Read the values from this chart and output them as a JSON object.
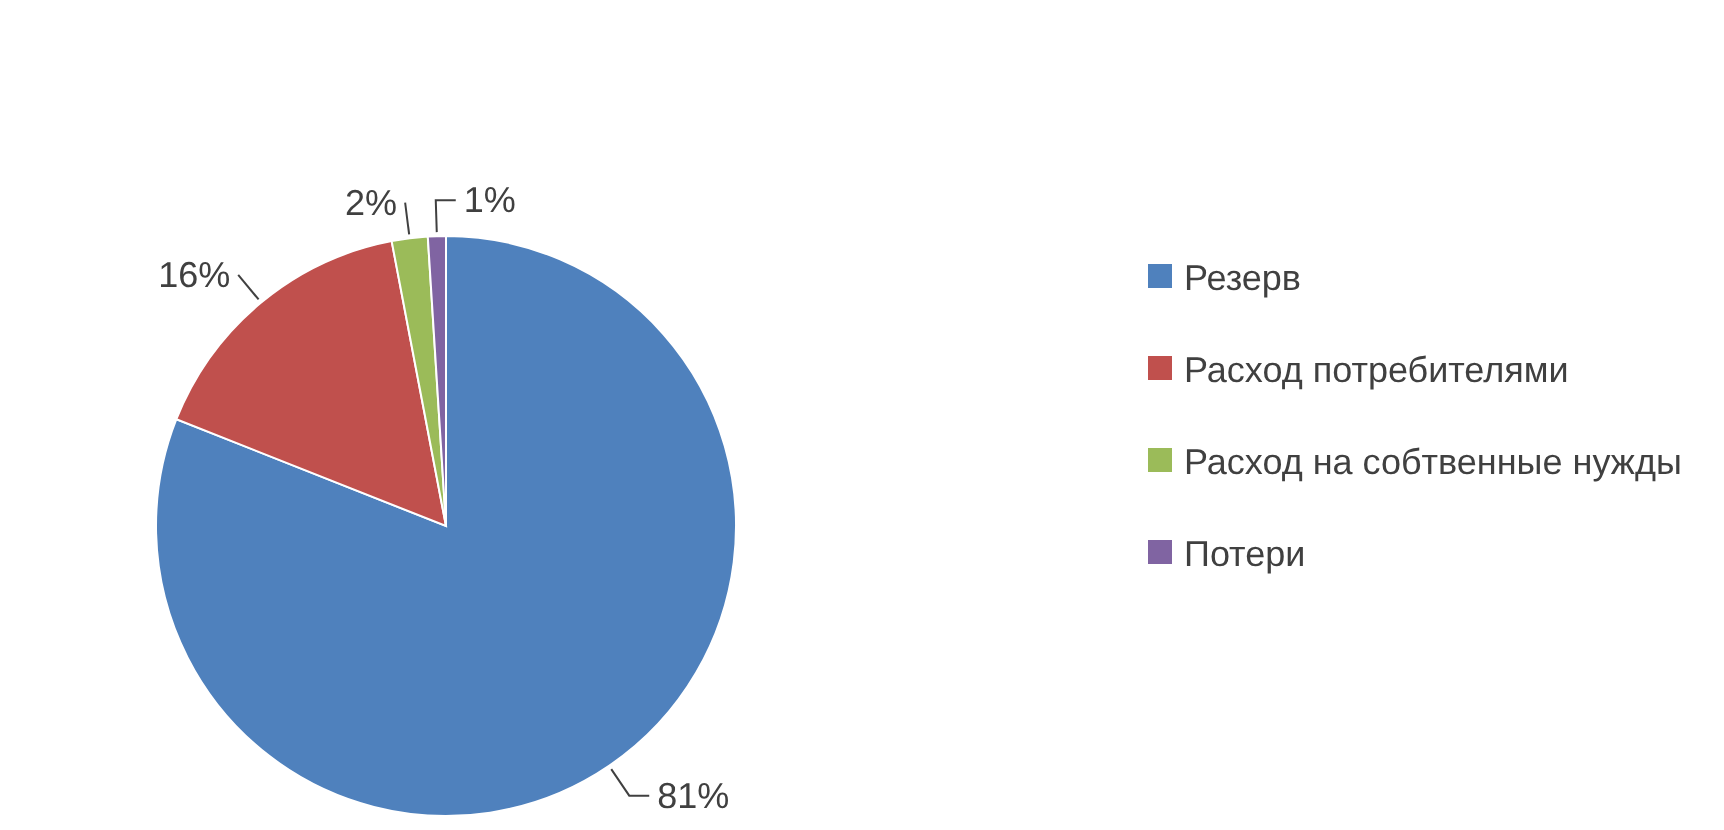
{
  "chart_data": {
    "type": "pie",
    "categories": [
      "Резерв",
      "Расход потребителями",
      "Расход на собтвенные нужды",
      "Потери"
    ],
    "values": [
      81,
      16,
      2,
      1
    ],
    "colors": [
      "#4f81bd",
      "#c0504d",
      "#9bbb59",
      "#8064a2"
    ],
    "value_labels": [
      "81%",
      "16%",
      "2%",
      "1%"
    ],
    "legend": "right"
  }
}
